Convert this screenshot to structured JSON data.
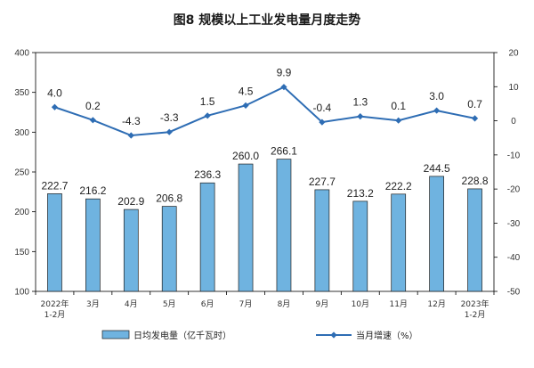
{
  "chart_data": {
    "type": "bar",
    "title": "图8  规模以上工业发电量月度走势",
    "categories": [
      [
        "2022年",
        "1-2月"
      ],
      [
        "3月"
      ],
      [
        "4月"
      ],
      [
        "5月"
      ],
      [
        "6月"
      ],
      [
        "7月"
      ],
      [
        "8月"
      ],
      [
        "9月"
      ],
      [
        "10月"
      ],
      [
        "11月"
      ],
      [
        "12月"
      ],
      [
        "2023年",
        "1-2月"
      ]
    ],
    "series": [
      {
        "name": "日均发电量（亿千瓦时）",
        "type": "bar",
        "axis": "left",
        "values": [
          222.7,
          216.2,
          202.9,
          206.8,
          236.3,
          260.0,
          266.1,
          227.7,
          213.2,
          222.2,
          244.5,
          228.8
        ],
        "labels": [
          "222.7",
          "216.2",
          "202.9",
          "206.8",
          "236.3",
          "260.0",
          "266.1",
          "227.7",
          "213.2",
          "222.2",
          "244.5",
          "228.8"
        ],
        "color": "#6FB3E0"
      },
      {
        "name": "当月增速（%）",
        "type": "line",
        "axis": "right",
        "values": [
          4.0,
          0.2,
          -4.3,
          -3.3,
          1.5,
          4.5,
          9.9,
          -0.4,
          1.3,
          0.1,
          3.0,
          0.7
        ],
        "labels": [
          "4.0",
          "0.2",
          "-4.3",
          "-3.3",
          "1.5",
          "4.5",
          "9.9",
          "-0.4",
          "1.3",
          "0.1",
          "3.0",
          "0.7"
        ],
        "color": "#2E6DB4"
      }
    ],
    "y_left": {
      "min": 100,
      "max": 400,
      "ticks": [
        "100",
        "150",
        "200",
        "250",
        "300",
        "350",
        "400"
      ]
    },
    "y_right": {
      "min": -50,
      "max": 20,
      "ticks": [
        "-50",
        "-40",
        "-30",
        "-20",
        "-10",
        "0",
        "10",
        "20"
      ]
    },
    "legend_position": "bottom",
    "grid": false
  }
}
